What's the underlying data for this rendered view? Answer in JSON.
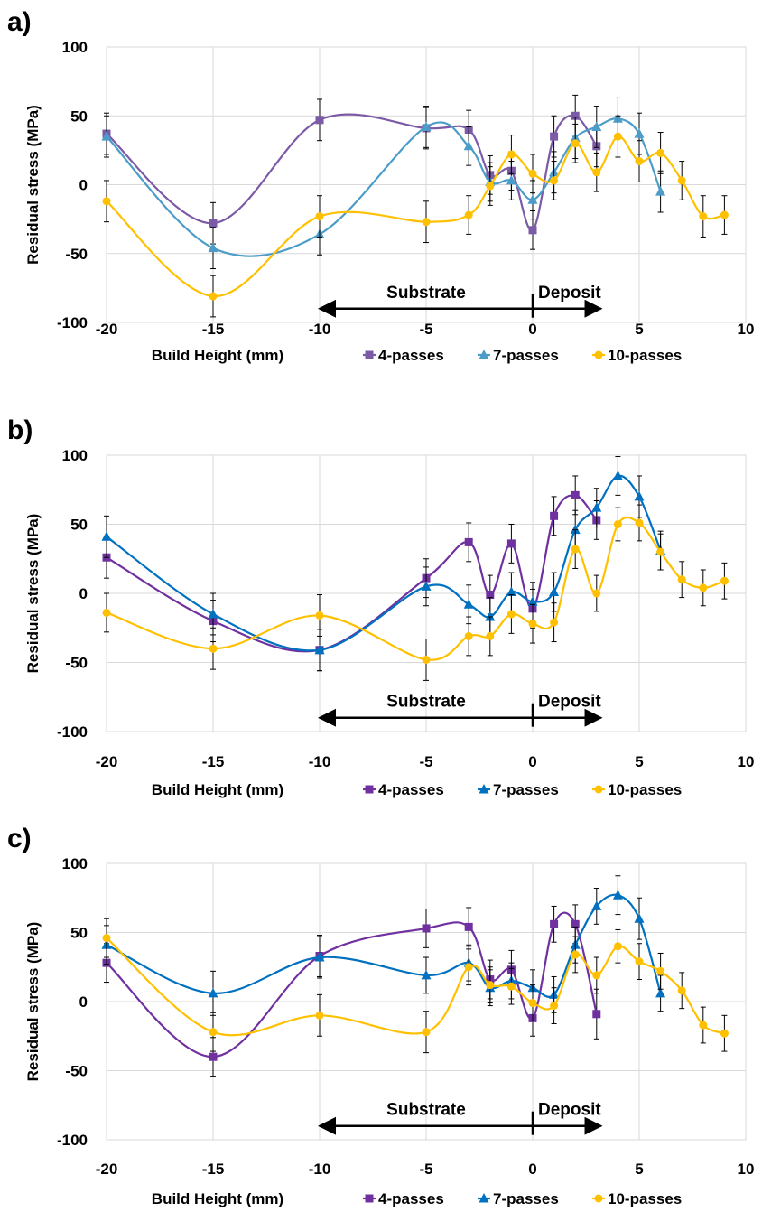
{
  "chart_data": [
    {
      "type": "line",
      "panel_label": "a)",
      "xlabel": "Build Height (mm)",
      "ylabel": "Residual stress (MPa)",
      "xlim": [
        -20,
        10
      ],
      "ylim": [
        -100,
        100
      ],
      "x_ticks": [
        "-20",
        "-15",
        "-10",
        "-5",
        "0",
        "5",
        "10"
      ],
      "y_ticks": [
        "100",
        "50",
        "0",
        "-50",
        "-100"
      ],
      "grid": "vertical",
      "legend_position": "bottom",
      "annotations": {
        "left": "Substrate",
        "right": "Deposit"
      },
      "series": [
        {
          "name": "4-passes",
          "marker": "square",
          "color": "#7b5aa6",
          "x": [
            -20,
            -15,
            -10,
            -5,
            -3,
            -2,
            -1,
            0,
            1,
            2,
            3
          ],
          "y": [
            37,
            -28,
            47,
            41,
            40,
            7,
            10,
            -33,
            35,
            50,
            28
          ],
          "err": [
            15,
            15,
            15,
            15,
            14,
            14,
            14,
            14,
            15,
            15,
            15
          ]
        },
        {
          "name": "7-passes",
          "marker": "triangle",
          "color": "#4b9cc8",
          "x": [
            -20,
            -15,
            -10,
            -5,
            -3,
            -2,
            -1,
            0,
            1,
            2,
            3,
            4,
            5,
            6
          ],
          "y": [
            35,
            -46,
            -36,
            42,
            28,
            2,
            3,
            -11,
            9,
            34,
            42,
            48,
            37,
            -5
          ],
          "err": [
            15,
            15,
            15,
            15,
            14,
            14,
            14,
            14,
            15,
            15,
            15,
            15,
            15,
            15
          ]
        },
        {
          "name": "10-passes",
          "marker": "circle",
          "color": "#ffc000",
          "x": [
            -20,
            -15,
            -10,
            -5,
            -3,
            -2,
            -1,
            0,
            1,
            2,
            3,
            4,
            5,
            6,
            7,
            8,
            9
          ],
          "y": [
            -12,
            -81,
            -23,
            -27,
            -22,
            -1,
            22,
            8,
            3,
            30,
            9,
            35,
            17,
            23,
            3,
            -23,
            -22
          ],
          "err": [
            15,
            15,
            15,
            15,
            14,
            14,
            14,
            14,
            14,
            14,
            14,
            15,
            15,
            15,
            14,
            15,
            14
          ]
        }
      ]
    },
    {
      "type": "line",
      "panel_label": "b)",
      "xlabel": "Build Height (mm)",
      "ylabel": "Residual stress (MPa)",
      "xlim": [
        -20,
        10
      ],
      "ylim": [
        -100,
        100
      ],
      "x_ticks": [
        "-20",
        "-15",
        "-10",
        "-5",
        "0",
        "5",
        "10"
      ],
      "y_ticks": [
        "100",
        "50",
        "0",
        "-50",
        "-100"
      ],
      "grid": "vertical",
      "legend_position": "bottom",
      "annotations": {
        "left": "Substrate",
        "right": "Deposit"
      },
      "series": [
        {
          "name": "4-passes",
          "marker": "square",
          "color": "#7030a0",
          "x": [
            -20,
            -15,
            -10,
            -5,
            -3,
            -2,
            -1,
            0,
            1,
            2,
            3
          ],
          "y": [
            26,
            -20,
            -41,
            11,
            37,
            -1,
            36,
            -11,
            56,
            71,
            53
          ],
          "err": [
            15,
            15,
            15,
            14,
            14,
            14,
            14,
            14,
            14,
            14,
            14
          ]
        },
        {
          "name": "7-passes",
          "marker": "triangle",
          "color": "#0070c0",
          "x": [
            -20,
            -15,
            -10,
            -5,
            -3,
            -2,
            -1,
            0,
            1,
            2,
            3,
            4,
            5,
            6
          ],
          "y": [
            41,
            -15,
            -41,
            5,
            -8,
            -17,
            1,
            -6,
            1,
            46,
            62,
            85,
            70,
            31
          ],
          "err": [
            15,
            15,
            15,
            14,
            14,
            14,
            14,
            14,
            14,
            14,
            14,
            14,
            15,
            14
          ]
        },
        {
          "name": "10-passes",
          "marker": "circle",
          "color": "#ffc000",
          "x": [
            -20,
            -15,
            -10,
            -5,
            -3,
            -2,
            -1,
            0,
            1,
            2,
            3,
            4,
            5,
            6,
            7,
            8,
            9
          ],
          "y": [
            -14,
            -40,
            -16,
            -48,
            -31,
            -31,
            -15,
            -22,
            -21,
            32,
            0,
            50,
            51,
            30,
            10,
            4,
            9
          ],
          "err": [
            14,
            15,
            15,
            15,
            14,
            14,
            14,
            14,
            14,
            14,
            13,
            12,
            13,
            13,
            13,
            13,
            13
          ]
        }
      ]
    },
    {
      "type": "line",
      "panel_label": "c)",
      "xlabel": "Build Height (mm)",
      "ylabel": "Residual stress (MPa)",
      "xlim": [
        -20,
        10
      ],
      "ylim": [
        -100,
        100
      ],
      "x_ticks": [
        "-20",
        "-15",
        "-10",
        "-5",
        "0",
        "5",
        "10"
      ],
      "y_ticks": [
        "100",
        "50",
        "0",
        "-50",
        "-100"
      ],
      "grid": "vertical",
      "legend_position": "bottom",
      "annotations": {
        "left": "Substrate",
        "right": "Deposit"
      },
      "series": [
        {
          "name": "4-passes",
          "marker": "square",
          "color": "#7030a0",
          "x": [
            -20,
            -15,
            -10,
            -5,
            -3,
            -2,
            -1,
            0,
            1,
            2,
            3
          ],
          "y": [
            28,
            -40,
            33,
            53,
            54,
            16,
            23,
            -12,
            56,
            56,
            -9
          ],
          "err": [
            14,
            14,
            15,
            14,
            14,
            14,
            14,
            13,
            13,
            14,
            18
          ]
        },
        {
          "name": "7-passes",
          "marker": "triangle",
          "color": "#0070c0",
          "x": [
            -20,
            -15,
            -10,
            -5,
            -3,
            -2,
            -1,
            0,
            1,
            2,
            3,
            4,
            5,
            6
          ],
          "y": [
            41,
            6,
            32,
            19,
            28,
            10,
            15,
            10,
            5,
            41,
            69,
            77,
            60,
            6
          ],
          "err": [
            14,
            16,
            15,
            13,
            13,
            13,
            13,
            13,
            13,
            13,
            13,
            14,
            15,
            13
          ]
        },
        {
          "name": "10-passes",
          "marker": "circle",
          "color": "#ffc000",
          "x": [
            -20,
            -15,
            -10,
            -5,
            -3,
            -2,
            -1,
            0,
            1,
            2,
            3,
            4,
            5,
            6,
            7,
            8,
            9
          ],
          "y": [
            46,
            -22,
            -10,
            -22,
            25,
            12,
            11,
            -1,
            -3,
            34,
            19,
            40,
            29,
            22,
            8,
            -17,
            -23
          ],
          "err": [
            14,
            14,
            15,
            15,
            13,
            13,
            13,
            13,
            13,
            13,
            13,
            12,
            13,
            13,
            13,
            13,
            13
          ]
        }
      ]
    }
  ]
}
